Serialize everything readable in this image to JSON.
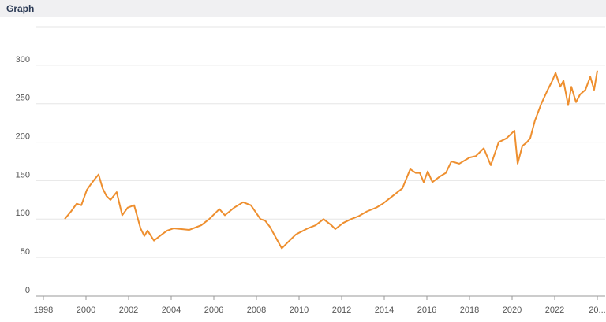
{
  "header": {
    "title": "Graph"
  },
  "chart_data": {
    "type": "line",
    "x": [
      1999.0,
      1999.3,
      1999.56,
      1999.78,
      2000.04,
      2000.22,
      2000.41,
      2000.59,
      2000.78,
      2000.96,
      2001.15,
      2001.44,
      2001.7,
      2001.96,
      2002.26,
      2002.56,
      2002.74,
      2002.89,
      2003.19,
      2003.56,
      2003.81,
      2004.11,
      2004.48,
      2004.85,
      2005.41,
      2005.78,
      2006.26,
      2006.52,
      2006.96,
      2007.37,
      2007.74,
      2007.89,
      2008.19,
      2008.41,
      2008.63,
      2008.93,
      2009.19,
      2009.48,
      2009.85,
      2010.41,
      2010.78,
      2011.15,
      2011.52,
      2011.7,
      2012.07,
      2012.44,
      2012.81,
      2013.19,
      2013.63,
      2013.93,
      2014.3,
      2014.85,
      2015.22,
      2015.48,
      2015.67,
      2015.85,
      2016.04,
      2016.26,
      2016.59,
      2016.89,
      2017.15,
      2017.52,
      2018.0,
      2018.3,
      2018.67,
      2019.0,
      2019.37,
      2019.74,
      2020.11,
      2020.26,
      2020.48,
      2020.7,
      2020.85,
      2021.07,
      2021.37,
      2021.67,
      2021.89,
      2022.04,
      2022.26,
      2022.41,
      2022.63,
      2022.78,
      2023.0,
      2023.19,
      2023.44,
      2023.67,
      2023.85,
      2024.0
    ],
    "series": [
      {
        "color": "#ee8f2f",
        "values": [
          100,
          110,
          120,
          118,
          138,
          145,
          152,
          158,
          140,
          130,
          125,
          135,
          105,
          115,
          118,
          88,
          78,
          85,
          72,
          80,
          85,
          88,
          87,
          86,
          92,
          100,
          113,
          105,
          115,
          122,
          118,
          112,
          100,
          98,
          90,
          75,
          62,
          70,
          80,
          88,
          92,
          100,
          92,
          87,
          95,
          100,
          104,
          110,
          115,
          120,
          128,
          140,
          165,
          160,
          160,
          148,
          162,
          148,
          155,
          160,
          175,
          172,
          180,
          182,
          192,
          170,
          200,
          205,
          215,
          172,
          195,
          200,
          205,
          228,
          250,
          268,
          280,
          290,
          272,
          280,
          248,
          272,
          252,
          262,
          268,
          285,
          268,
          293
        ]
      }
    ],
    "xlim": [
      1998,
      2024
    ],
    "xticks": [
      1998,
      2000,
      2002,
      2004,
      2006,
      2008,
      2010,
      2012,
      2014,
      2016,
      2018,
      2020,
      2022,
      {
        "value": 2024,
        "label": "20..."
      }
    ],
    "ylim": [
      0,
      350
    ],
    "yticks": [
      0,
      50,
      100,
      150,
      200,
      250,
      300
    ],
    "grid": true
  }
}
